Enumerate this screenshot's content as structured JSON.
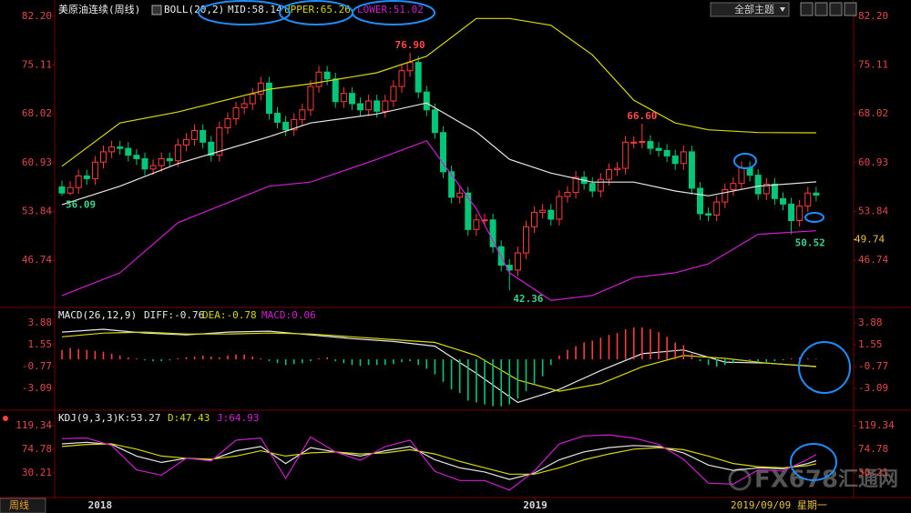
{
  "toolbar": {
    "theme_button": "全部主题"
  },
  "footer": {
    "tab": "周线",
    "date": "2019/09/09 星期一"
  },
  "watermark": {
    "brand": "FX678",
    "name": "汇通网"
  },
  "chart_data": [
    {
      "type": "candlestick",
      "title": "美原油连续(周线)",
      "indicator": "BOLL(20,2)",
      "xlim": [
        -0.66,
        95.3
      ],
      "ylim": [
        40.13,
        83.92
      ],
      "yticks": [
        {
          "value": 82.2,
          "label": "82.20"
        },
        75.11,
        68.02,
        60.93,
        53.84,
        46.74
      ],
      "up_color": "#ff3c3c",
      "down_color": "#00c878",
      "x": [
        0,
        1,
        2,
        3,
        4,
        5,
        6,
        7,
        8,
        9,
        10,
        11,
        12,
        13,
        14,
        15,
        16,
        17,
        18,
        19,
        20,
        21,
        22,
        23,
        24,
        25,
        26,
        27,
        28,
        29,
        30,
        31,
        32,
        33,
        34,
        35,
        36,
        37,
        38,
        39,
        40,
        41,
        42,
        43,
        44,
        45,
        46,
        47,
        48,
        49,
        50,
        51,
        52,
        53,
        54,
        55,
        56,
        57,
        58,
        59,
        60,
        61,
        62,
        63,
        64,
        65,
        66,
        67,
        68,
        69,
        70,
        71,
        72,
        73,
        74,
        75,
        76,
        77,
        78,
        79,
        80,
        81,
        82,
        83,
        84,
        85,
        86,
        87,
        88,
        89,
        90,
        91
      ],
      "open": [
        57.4,
        56.5,
        57.3,
        59.0,
        58.6,
        61.0,
        62.5,
        63.2,
        63.0,
        62.0,
        61.5,
        60.0,
        60.5,
        61.5,
        61.2,
        63.5,
        64.3,
        65.6,
        63.9,
        62.0,
        66.0,
        67.3,
        68.9,
        69.5,
        70.9,
        72.5,
        68.1,
        66.8,
        65.7,
        67.2,
        68.6,
        72.0,
        74.1,
        73.1,
        69.8,
        71.0,
        69.5,
        68.6,
        69.9,
        68.4,
        69.9,
        72.0,
        74.3,
        75.5,
        71.2,
        68.6,
        65.3,
        59.6,
        55.9,
        56.5,
        51.2,
        52.6,
        52.6,
        48.7,
        46.0,
        45.3,
        47.8,
        51.6,
        53.7,
        54.0,
        52.7,
        56.0,
        56.6,
        58.8,
        57.9,
        56.8,
        58.5,
        59.9,
        60.1,
        63.9,
        63.9,
        64.0,
        63.0,
        62.7,
        61.9,
        60.8,
        62.5,
        57.2,
        53.5,
        53.3,
        55.2,
        57.0,
        57.9,
        60.2,
        59.1,
        56.4,
        57.8,
        55.7,
        54.9,
        52.5,
        54.6,
        56.5
      ],
      "high": [
        58.3,
        58.2,
        59.9,
        59.9,
        61.9,
        63.4,
        64.1,
        64.1,
        63.9,
        62.9,
        62.4,
        61.4,
        62.4,
        62.4,
        64.4,
        65.2,
        66.5,
        66.5,
        64.8,
        66.9,
        68.2,
        69.8,
        70.4,
        71.8,
        73.4,
        73.4,
        69.0,
        67.7,
        68.1,
        69.5,
        72.9,
        75.0,
        75.0,
        74.0,
        71.9,
        71.9,
        70.4,
        70.8,
        70.8,
        70.8,
        72.9,
        75.2,
        76.9,
        76.4,
        72.1,
        69.5,
        66.2,
        60.5,
        57.4,
        57.4,
        53.5,
        53.5,
        53.5,
        49.6,
        46.9,
        48.7,
        52.5,
        54.6,
        54.9,
        54.9,
        56.9,
        57.5,
        59.7,
        59.7,
        58.8,
        59.4,
        60.8,
        61.0,
        64.8,
        64.8,
        66.6,
        64.9,
        63.9,
        63.6,
        62.8,
        63.4,
        63.4,
        58.1,
        54.4,
        56.1,
        57.9,
        58.8,
        61.1,
        61.1,
        60.0,
        58.7,
        58.7,
        56.6,
        55.8,
        55.5,
        57.4,
        57.4
      ],
      "low": [
        56.09,
        56.2,
        56.4,
        57.7,
        57.7,
        60.1,
        61.6,
        62.1,
        61.1,
        60.6,
        59.1,
        59.1,
        59.6,
        60.3,
        60.3,
        62.6,
        63.4,
        63.0,
        61.1,
        61.1,
        65.1,
        66.4,
        68.0,
        68.6,
        70.0,
        67.2,
        65.9,
        64.8,
        64.8,
        66.3,
        67.7,
        71.1,
        72.2,
        68.9,
        68.9,
        68.6,
        67.7,
        67.7,
        67.5,
        67.5,
        69.0,
        71.1,
        73.4,
        70.3,
        67.7,
        64.4,
        58.7,
        55.0,
        55.0,
        50.3,
        50.3,
        51.7,
        47.8,
        45.1,
        42.36,
        44.4,
        46.9,
        50.7,
        52.8,
        51.8,
        51.8,
        55.1,
        55.7,
        57.0,
        55.9,
        55.9,
        57.6,
        59.0,
        59.2,
        63.0,
        63.0,
        62.1,
        61.8,
        61.0,
        59.9,
        59.9,
        56.3,
        52.6,
        52.4,
        52.4,
        54.3,
        56.1,
        57.0,
        58.2,
        55.5,
        55.5,
        54.8,
        54.0,
        50.52,
        51.6,
        53.7,
        55.3
      ],
      "close": [
        56.5,
        57.3,
        59.0,
        58.6,
        61.0,
        62.5,
        63.2,
        63.0,
        62.0,
        61.5,
        60.0,
        60.5,
        61.5,
        61.2,
        63.5,
        64.3,
        65.6,
        63.9,
        62.0,
        66.0,
        67.3,
        68.9,
        69.5,
        70.9,
        72.5,
        68.1,
        66.8,
        65.7,
        67.2,
        68.6,
        72.0,
        74.1,
        73.1,
        69.8,
        71.0,
        69.5,
        68.6,
        69.9,
        68.4,
        69.9,
        72.0,
        74.3,
        75.5,
        71.2,
        68.6,
        65.3,
        59.6,
        55.9,
        56.5,
        51.2,
        52.6,
        52.6,
        48.7,
        46.0,
        45.3,
        47.8,
        51.6,
        53.7,
        54.0,
        52.7,
        56.0,
        56.6,
        58.8,
        57.9,
        56.8,
        58.5,
        59.9,
        60.1,
        63.9,
        63.9,
        64.0,
        63.0,
        62.7,
        61.9,
        60.8,
        62.5,
        57.2,
        53.5,
        53.3,
        55.2,
        57.0,
        57.9,
        60.2,
        59.1,
        56.4,
        57.8,
        55.7,
        54.9,
        52.5,
        54.6,
        56.5,
        56.2
      ],
      "series": [
        {
          "name": "MID:58.14",
          "color": "#e6e6e6",
          "x": [
            0,
            7,
            14,
            25,
            30,
            38,
            44,
            50,
            54,
            59,
            64,
            69,
            74,
            78,
            84,
            91
          ],
          "values": [
            54.8,
            57.5,
            60.8,
            64.7,
            66.7,
            68.0,
            69.6,
            65.4,
            61.4,
            59.4,
            58.1,
            58.1,
            56.8,
            56.1,
            57.5,
            58.14
          ]
        },
        {
          "name": "UPPER:65.26",
          "color": "#d8d800",
          "x": [
            0,
            7,
            14,
            25,
            30,
            38,
            44,
            50,
            54,
            59,
            64,
            69,
            74,
            78,
            84,
            91
          ],
          "values": [
            60.4,
            66.7,
            68.3,
            71.6,
            72.4,
            74.0,
            76.4,
            81.9,
            81.9,
            80.9,
            76.6,
            70.0,
            66.7,
            65.7,
            65.3,
            65.26
          ]
        },
        {
          "name": "LOWER:51.02",
          "color": "#d21ed2",
          "x": [
            0,
            7,
            14,
            25,
            30,
            38,
            44,
            50,
            54,
            59,
            64,
            69,
            74,
            78,
            84,
            91
          ],
          "values": [
            41.6,
            44.9,
            52.2,
            57.5,
            58.1,
            61.4,
            64.1,
            54.2,
            44.9,
            40.9,
            41.6,
            44.2,
            44.9,
            46.2,
            50.5,
            51.02
          ]
        }
      ],
      "annotations": [
        {
          "label": "76.90",
          "value": 76.9,
          "x": 42,
          "position": "above",
          "color": "#ff4a4a"
        },
        {
          "label": "66.60",
          "value": 66.6,
          "x": 70,
          "position": "above",
          "color": "#ff4a4a"
        },
        {
          "label": "56.09",
          "value": 56.09,
          "x": 0,
          "position": "below",
          "color": "#3cd28c"
        },
        {
          "label": "42.36",
          "value": 42.36,
          "x": 54,
          "position": "below",
          "color": "#3cd28c"
        },
        {
          "label": "50.52",
          "value": 50.52,
          "x": 88,
          "position": "below",
          "color": "#3cd28c"
        }
      ],
      "price_marker": {
        "value": 49.74,
        "label": "49.74",
        "color": "#e8c040"
      }
    },
    {
      "type": "macd",
      "title": "MACD(26,12,9)",
      "xlim": [
        -0.66,
        95.3
      ],
      "ylim": [
        -5.13,
        5.14
      ],
      "yticks": [
        3.88,
        1.55,
        -0.77,
        -3.09
      ],
      "series": [
        {
          "name": "DIFF:-0.76",
          "color": "#e6e6e6",
          "x": [
            0,
            5,
            10,
            15,
            20,
            25,
            30,
            35,
            40,
            45,
            50,
            55,
            60,
            65,
            70,
            75,
            80,
            85,
            91
          ],
          "values": [
            2.9,
            3.2,
            2.8,
            2.6,
            2.9,
            3.0,
            2.6,
            2.2,
            1.9,
            1.4,
            -1.5,
            -4.6,
            -3.2,
            -1.2,
            0.6,
            1.0,
            -0.3,
            -0.4,
            -0.76
          ]
        },
        {
          "name": "DEA:-0.78",
          "color": "#d8d800",
          "x": [
            0,
            5,
            10,
            15,
            20,
            25,
            30,
            35,
            40,
            45,
            50,
            55,
            60,
            65,
            70,
            75,
            80,
            85,
            91
          ],
          "values": [
            2.4,
            2.8,
            2.9,
            2.7,
            2.7,
            2.8,
            2.7,
            2.4,
            2.1,
            1.8,
            0.4,
            -2.2,
            -3.4,
            -2.6,
            -0.8,
            0.4,
            0.1,
            -0.4,
            -0.78
          ]
        },
        {
          "name": "MACD:0.06",
          "type": "bar",
          "color": "#d21ed2",
          "up_color": "#ff3c3c",
          "down_color": "#00c878",
          "x": [
            0,
            1,
            2,
            3,
            4,
            5,
            6,
            7,
            8,
            9,
            10,
            11,
            12,
            13,
            14,
            15,
            16,
            17,
            18,
            19,
            20,
            21,
            22,
            23,
            24,
            25,
            26,
            27,
            28,
            29,
            30,
            31,
            32,
            33,
            34,
            35,
            36,
            37,
            38,
            39,
            40,
            41,
            42,
            43,
            44,
            45,
            46,
            47,
            48,
            49,
            50,
            51,
            52,
            53,
            54,
            55,
            56,
            57,
            58,
            59,
            60,
            61,
            62,
            63,
            64,
            65,
            66,
            67,
            68,
            69,
            70,
            71,
            72,
            73,
            74,
            75,
            76,
            77,
            78,
            79,
            80,
            81,
            82,
            83,
            84,
            85,
            86,
            87,
            88,
            89,
            90,
            91
          ],
          "values": [
            1.0,
            1.2,
            1.1,
            1.0,
            0.9,
            0.8,
            0.6,
            0.4,
            0.2,
            0.1,
            -0.1,
            -0.2,
            -0.2,
            -0.1,
            0.1,
            0.2,
            0.3,
            0.4,
            0.3,
            0.2,
            0.4,
            0.5,
            0.5,
            0.3,
            0.1,
            -0.2,
            -0.4,
            -0.6,
            -0.5,
            -0.4,
            -0.2,
            0.1,
            0.2,
            -0.2,
            -0.4,
            -0.6,
            -0.7,
            -0.6,
            -0.6,
            -0.6,
            -0.5,
            -0.3,
            -0.2,
            -0.6,
            -1.0,
            -1.6,
            -2.4,
            -3.2,
            -3.6,
            -4.4,
            -4.6,
            -4.8,
            -5.0,
            -5.0,
            -4.8,
            -4.2,
            -3.4,
            -2.6,
            -1.8,
            -0.6,
            0.4,
            1.0,
            1.4,
            1.8,
            2.0,
            2.3,
            2.6,
            2.8,
            3.2,
            3.4,
            3.4,
            3.2,
            2.9,
            2.4,
            1.8,
            1.5,
            0.6,
            -0.2,
            -0.6,
            -0.8,
            -0.6,
            -0.4,
            -0.2,
            -0.1,
            -0.2,
            -0.3,
            -0.2,
            -0.1,
            0.1,
            0.2,
            0.1,
            0.06
          ]
        }
      ]
    },
    {
      "type": "line",
      "title": "KDJ(9,3,3)",
      "xlim": [
        -0.66,
        95.3
      ],
      "ylim": [
        -12.7,
        141.6
      ],
      "yticks": [
        119.34,
        74.78,
        30.21
      ],
      "xticks": [
        {
          "value": 4.6,
          "label": "2018"
        },
        {
          "value": 57.1,
          "label": "2019"
        }
      ],
      "series": [
        {
          "name": "K:53.27",
          "color": "#e6e6e6",
          "x": [
            0,
            3,
            6,
            9,
            12,
            15,
            18,
            21,
            24,
            27,
            30,
            33,
            36,
            39,
            42,
            45,
            48,
            51,
            54,
            57,
            60,
            63,
            66,
            69,
            72,
            75,
            78,
            81,
            84,
            87,
            90,
            91
          ],
          "values": [
            85,
            88,
            84,
            62,
            50,
            58,
            55,
            72,
            80,
            48,
            78,
            70,
            62,
            72,
            80,
            55,
            40,
            32,
            18,
            30,
            55,
            70,
            78,
            82,
            80,
            68,
            45,
            35,
            40,
            38,
            48,
            53.27
          ]
        },
        {
          "name": "D:47.43",
          "color": "#d8d800",
          "x": [
            0,
            3,
            6,
            9,
            12,
            15,
            18,
            21,
            24,
            27,
            30,
            33,
            36,
            39,
            42,
            45,
            48,
            51,
            54,
            57,
            60,
            63,
            66,
            69,
            72,
            75,
            78,
            81,
            84,
            87,
            90,
            91
          ],
          "values": [
            80,
            84,
            85,
            75,
            62,
            58,
            56,
            62,
            72,
            62,
            68,
            70,
            66,
            68,
            74,
            66,
            52,
            40,
            28,
            28,
            40,
            55,
            66,
            75,
            78,
            74,
            62,
            48,
            42,
            40,
            44,
            47.43
          ]
        },
        {
          "name": "J:64.93",
          "color": "#d21ed2",
          "x": [
            0,
            3,
            6,
            9,
            12,
            15,
            18,
            21,
            24,
            27,
            30,
            33,
            36,
            39,
            42,
            45,
            48,
            51,
            54,
            57,
            60,
            63,
            66,
            69,
            72,
            75,
            78,
            81,
            84,
            87,
            90,
            91
          ],
          "values": [
            95,
            96,
            82,
            36,
            26,
            58,
            53,
            92,
            96,
            20,
            98,
            70,
            54,
            80,
            92,
            33,
            16,
            16,
            -2,
            34,
            85,
            100,
            102,
            96,
            84,
            56,
            11,
            9,
            36,
            34,
            56,
            64.93
          ]
        }
      ]
    }
  ]
}
